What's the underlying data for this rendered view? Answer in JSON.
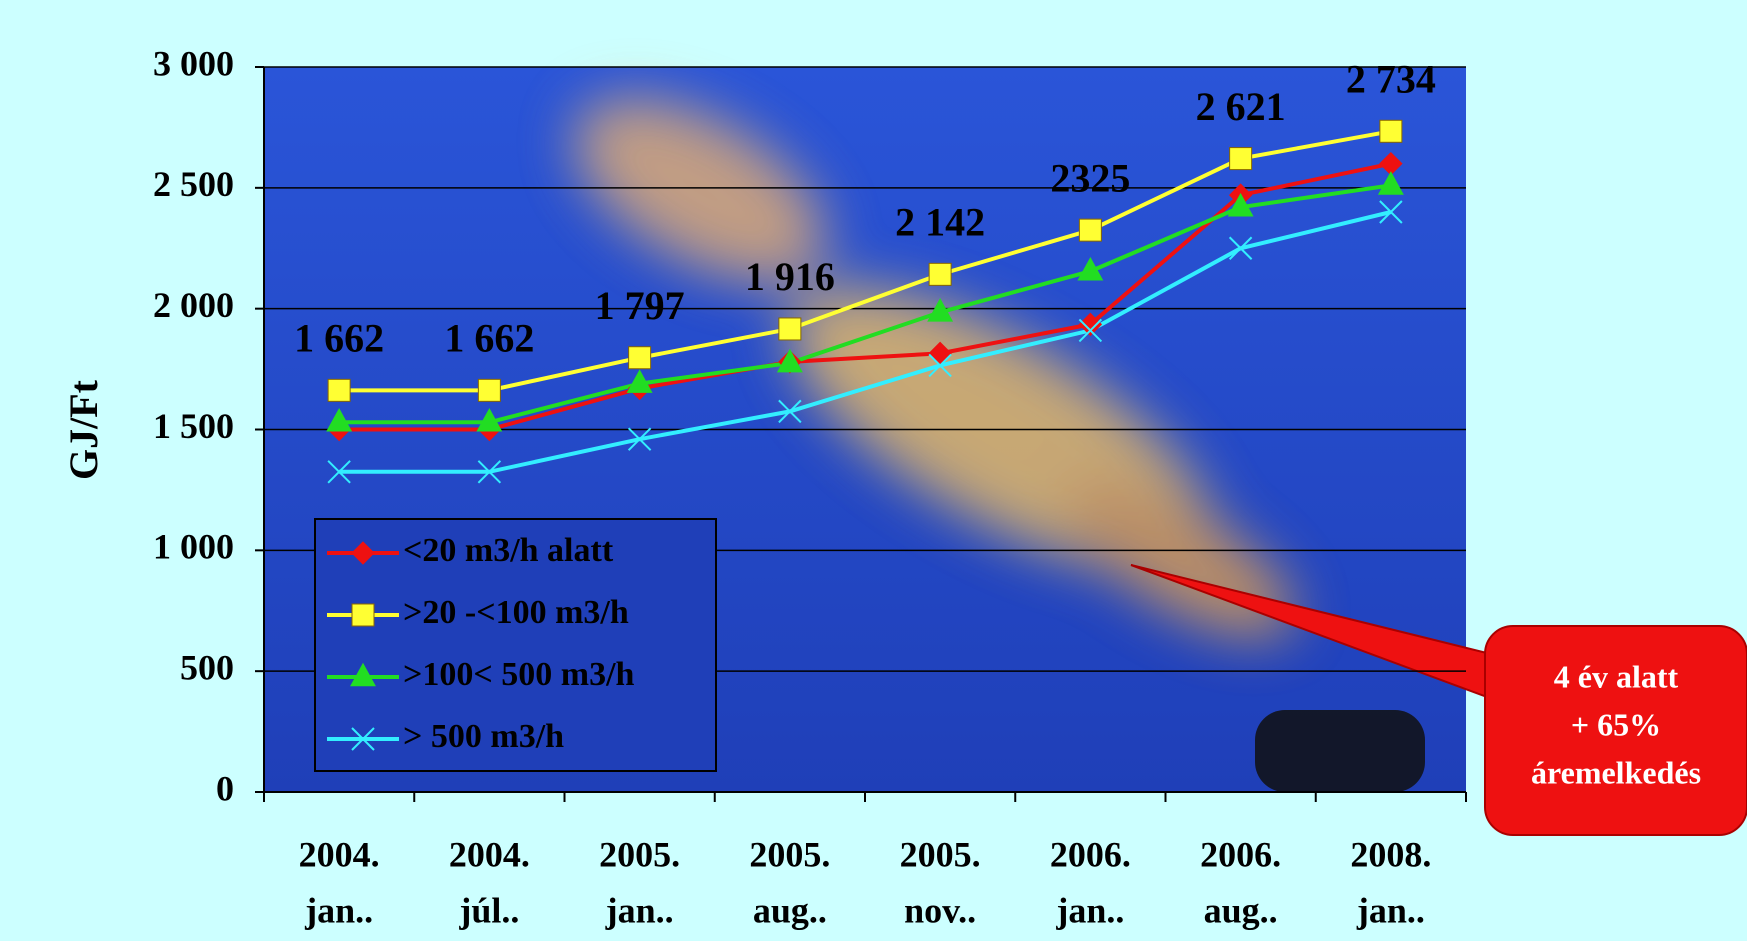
{
  "chart_data": {
    "type": "line",
    "y_label": "GJ/Ft",
    "categories": [
      [
        "2004.",
        "jan.."
      ],
      [
        "2004.",
        "júl.."
      ],
      [
        "2005.",
        "jan.."
      ],
      [
        "2005.",
        "aug.."
      ],
      [
        "2005.",
        "nov.."
      ],
      [
        "2006.",
        "jan.."
      ],
      [
        "2006.",
        "aug.."
      ],
      [
        "2008.",
        "jan.."
      ]
    ],
    "series": [
      {
        "name": "<20 m3/h alatt",
        "color": "#ee1111",
        "marker": "diamond",
        "values": [
          1500,
          1500,
          1670,
          1780,
          1815,
          1935,
          2470,
          2600
        ]
      },
      {
        "name": ">20 -<100 m3/h",
        "color": "#ffff33",
        "marker": "square",
        "values": [
          1662,
          1662,
          1797,
          1916,
          2142,
          2325,
          2621,
          2734
        ],
        "value_labels": [
          "1 662",
          "1 662",
          "1 797",
          "1 916",
          "2 142",
          "2325",
          "2 621",
          "2 734"
        ]
      },
      {
        "name": ">100< 500 m3/h",
        "color": "#22dd22",
        "marker": "triangle",
        "values": [
          1530,
          1530,
          1690,
          1775,
          1985,
          2155,
          2420,
          2510
        ]
      },
      {
        "name": "> 500 m3/h",
        "color": "#33eeff",
        "marker": "x",
        "values": [
          1325,
          1325,
          1460,
          1575,
          1765,
          1910,
          2250,
          2400
        ]
      }
    ],
    "ylim": [
      0,
      3000
    ],
    "yticks": [
      0,
      500,
      {
        "value": 1000,
        "label": "1 000"
      },
      {
        "value": 1500,
        "label": "1 500"
      },
      {
        "value": 2000,
        "label": "2 000"
      },
      {
        "value": 2500,
        "label": "2 500"
      },
      {
        "value": 3000,
        "label": "3 000"
      }
    ],
    "grid": true,
    "legend": "lower left",
    "annotation": [
      "4 év alatt",
      "+ 65%",
      "áremelkedés"
    ]
  }
}
